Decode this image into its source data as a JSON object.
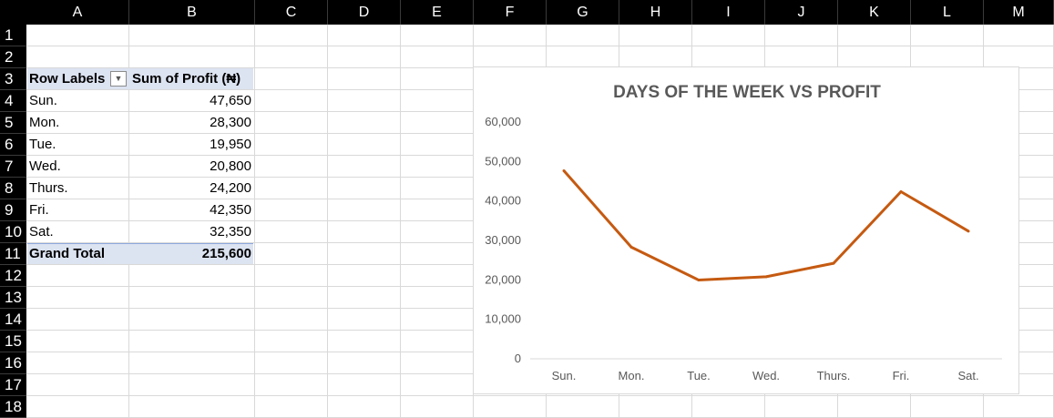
{
  "columns": [
    "A",
    "B",
    "C",
    "D",
    "E",
    "F",
    "G",
    "H",
    "I",
    "J",
    "K",
    "L",
    "M"
  ],
  "rows": [
    "1",
    "2",
    "3",
    "4",
    "5",
    "6",
    "7",
    "8",
    "9",
    "10",
    "11",
    "12",
    "13",
    "14",
    "15",
    "16",
    "17",
    "18"
  ],
  "pivot": {
    "header_row_labels": "Row Labels",
    "header_sum": "Sum of Profit (₦)",
    "rows": [
      {
        "label": "Sun.",
        "value": "47,650"
      },
      {
        "label": "Mon.",
        "value": "28,300"
      },
      {
        "label": "Tue.",
        "value": "19,950"
      },
      {
        "label": "Wed.",
        "value": "20,800"
      },
      {
        "label": "Thurs.",
        "value": "24,200"
      },
      {
        "label": "Fri.",
        "value": "42,350"
      },
      {
        "label": "Sat.",
        "value": "32,350"
      }
    ],
    "grand_total_label": "Grand Total",
    "grand_total_value": "215,600"
  },
  "colors": {
    "header_black": "#000000",
    "pivot_header_band": "#dce3f1",
    "line": "#c55a11",
    "gridline": "#d9d9d9",
    "axis_text": "#595959"
  },
  "chart_data": {
    "type": "line",
    "title": "DAYS OF THE WEEK VS PROFIT",
    "categories": [
      "Sun.",
      "Mon.",
      "Tue.",
      "Wed.",
      "Thurs.",
      "Fri.",
      "Sat."
    ],
    "series": [
      {
        "values": [
          47650,
          28300,
          19950,
          20800,
          24200,
          42350,
          32350
        ]
      }
    ],
    "ylim": [
      0,
      60000
    ],
    "yticks": [
      0,
      10000,
      20000,
      30000,
      40000,
      50000,
      60000
    ],
    "ytick_labels": [
      "0",
      "10,000",
      "20,000",
      "30,000",
      "40,000",
      "50,000",
      "60,000"
    ],
    "xlabel": "",
    "ylabel": "",
    "grid": false,
    "legend": "none"
  }
}
